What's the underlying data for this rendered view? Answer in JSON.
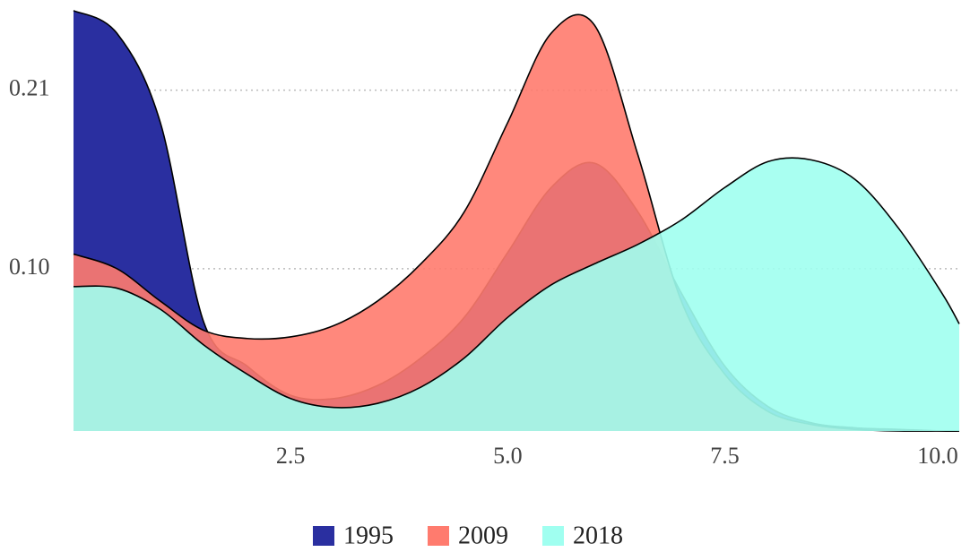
{
  "chart_data": {
    "type": "area",
    "x": [
      0,
      0.5,
      1,
      1.5,
      2,
      2.5,
      3,
      3.5,
      4,
      4.5,
      5,
      5.5,
      6,
      6.5,
      7,
      7.5,
      8,
      8.5,
      9,
      9.5,
      10,
      10.2
    ],
    "series": [
      {
        "name": "1995",
        "color": "#2a2fa0",
        "values": [
          0.259,
          0.245,
          0.19,
          0.067,
          0.04,
          0.022,
          0.02,
          0.028,
          0.045,
          0.07,
          0.11,
          0.15,
          0.165,
          0.135,
          0.085,
          0.04,
          0.015,
          0.005,
          0.002,
          0.001,
          0,
          0
        ]
      },
      {
        "name": "2009",
        "color": "#ff7b6e",
        "values": [
          0.109,
          0.1,
          0.08,
          0.062,
          0.057,
          0.058,
          0.065,
          0.08,
          0.103,
          0.135,
          0.19,
          0.245,
          0.25,
          0.17,
          0.08,
          0.035,
          0.012,
          0.004,
          0.001,
          0,
          0,
          0
        ]
      },
      {
        "name": "2018",
        "color": "#a0fff0",
        "values": [
          0.089,
          0.088,
          0.075,
          0.053,
          0.035,
          0.02,
          0.0145,
          0.017,
          0.027,
          0.045,
          0.07,
          0.09,
          0.103,
          0.115,
          0.13,
          0.15,
          0.166,
          0.167,
          0.155,
          0.125,
          0.085,
          0.066
        ]
      }
    ],
    "xlim": [
      0,
      10.2
    ],
    "ylim": [
      0,
      0.26
    ],
    "xticks": [
      2.5,
      {
        "value": 5,
        "label": "5.0"
      },
      7.5,
      {
        "value": 10,
        "label": "10.0"
      }
    ],
    "yticks": [
      {
        "value": 0.1,
        "label": "0.10"
      },
      0.21
    ],
    "grid": true,
    "legend": "bottom"
  }
}
